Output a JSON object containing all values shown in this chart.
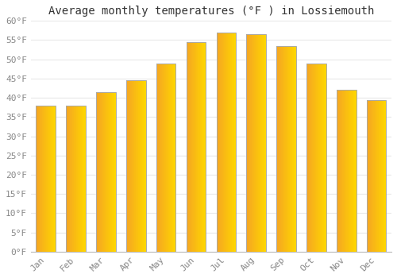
{
  "title": "Average monthly temperatures (°F ) in Lossiemouth",
  "months": [
    "Jan",
    "Feb",
    "Mar",
    "Apr",
    "May",
    "Jun",
    "Jul",
    "Aug",
    "Sep",
    "Oct",
    "Nov",
    "Dec"
  ],
  "values": [
    38,
    38,
    41.5,
    44.5,
    49,
    54.5,
    57,
    56.5,
    53.5,
    49,
    42,
    39.5
  ],
  "bar_color_left": "#F5A623",
  "bar_color_right": "#FFD700",
  "bar_edge_color": "#AAAAAA",
  "ylim": [
    0,
    60
  ],
  "yticks": [
    0,
    5,
    10,
    15,
    20,
    25,
    30,
    35,
    40,
    45,
    50,
    55,
    60
  ],
  "background_color": "#FFFFFF",
  "plot_bg_color": "#FAFAFA",
  "grid_color": "#E8E8E8",
  "title_fontsize": 10,
  "tick_fontsize": 8,
  "tick_color": "#888888",
  "title_color": "#333333"
}
